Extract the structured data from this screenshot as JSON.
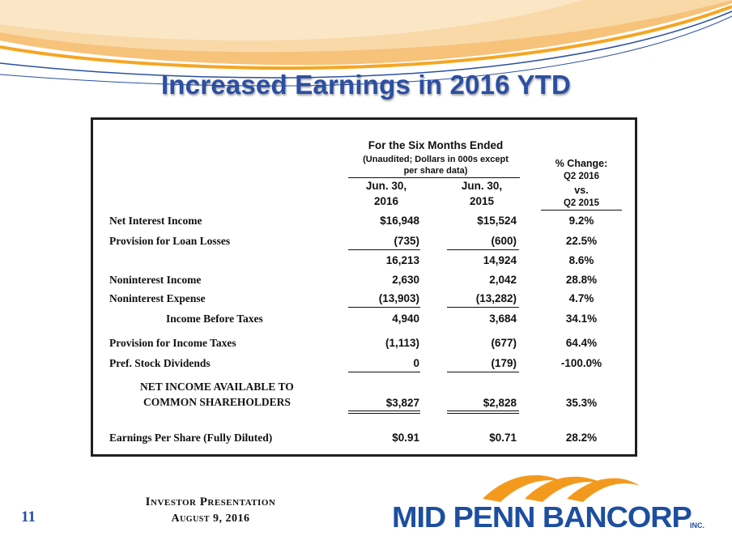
{
  "slide": {
    "title": "Increased Earnings in 2016 YTD",
    "page_number": "11",
    "footer_line1": "Investor Presentation",
    "footer_line2": "August 9, 2016"
  },
  "logo": {
    "company": "MID PENN BANCORP",
    "suffix": "INC."
  },
  "colors": {
    "title": "#2b4fa2",
    "logo_blue": "#1d4ea0",
    "logo_orange": "#f39a1e",
    "swoosh_orange": "#f5a623"
  },
  "table": {
    "period_header": "For the Six Months Ended",
    "subheader_line1": "(Unaudited; Dollars in 000s except",
    "subheader_line2": "per share data)",
    "col1_line1": "Jun. 30,",
    "col1_line2": "2016",
    "col2_line1": "Jun. 30,",
    "col2_line2": "2015",
    "pct_line1": "% Change:",
    "pct_line2": "Q2 2016",
    "pct_line3": "vs.",
    "pct_line4": "Q2 2015",
    "rows": [
      {
        "label": "Net Interest Income",
        "v2016": "$16,948",
        "v2015": "$15,524",
        "pct": "9.2%"
      },
      {
        "label": "Provision for Loan Losses",
        "v2016": "(735)",
        "v2015": "(600)",
        "pct": "22.5%"
      },
      {
        "label": "",
        "v2016": "16,213",
        "v2015": "14,924",
        "pct": "8.6%"
      },
      {
        "label": "Noninterest Income",
        "v2016": "2,630",
        "v2015": "2,042",
        "pct": "28.8%"
      },
      {
        "label": "Noninterest Expense",
        "v2016": "(13,903)",
        "v2015": "(13,282)",
        "pct": "4.7%"
      },
      {
        "label": "Income Before Taxes",
        "v2016": "4,940",
        "v2015": "3,684",
        "pct": "34.1%"
      },
      {
        "label": "Provision for Income Taxes",
        "v2016": "(1,113)",
        "v2015": "(677)",
        "pct": "64.4%"
      },
      {
        "label": "Pref. Stock Dividends",
        "v2016": "0",
        "v2015": "(179)",
        "pct": "-100.0%"
      },
      {
        "label_line1": "NET INCOME AVAILABLE TO",
        "label_line2": "COMMON SHAREHOLDERS",
        "v2016": "$3,827",
        "v2015": "$2,828",
        "pct": "35.3%"
      },
      {
        "label": "Earnings Per Share (Fully Diluted)",
        "v2016": "$0.91",
        "v2015": "$0.71",
        "pct": "28.2%"
      }
    ]
  }
}
